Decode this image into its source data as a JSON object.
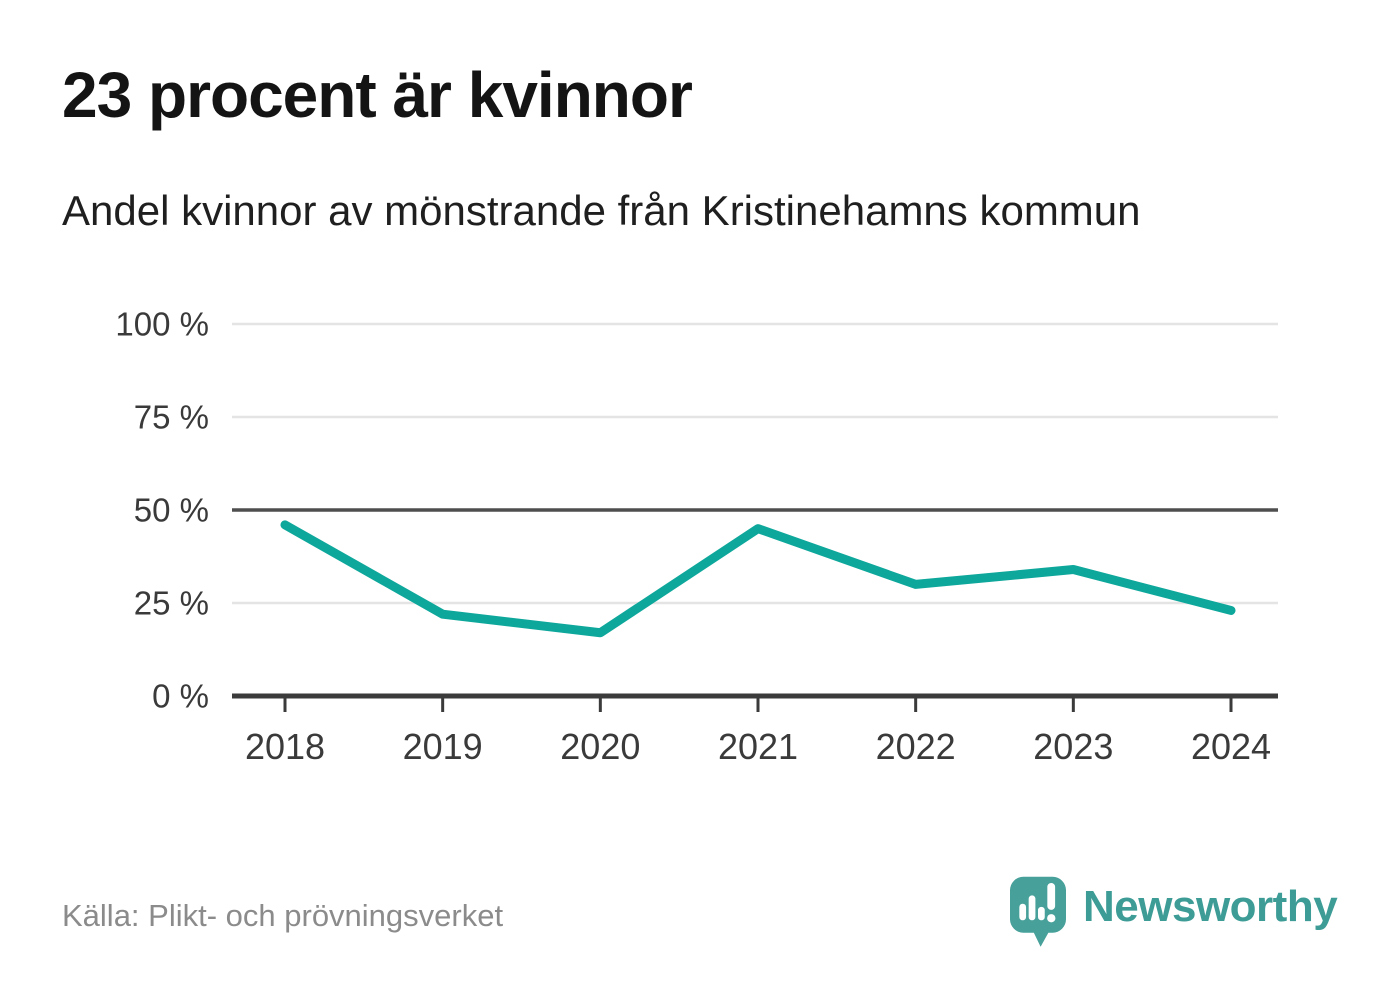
{
  "header": {
    "title": "23 procent är kvinnor",
    "subtitle": "Andel kvinnor av mönstrande från Kristinehamns kommun"
  },
  "footer": {
    "source": "Källa: Plikt- och prövningsverket",
    "brand": "Newsworthy"
  },
  "colors": {
    "line": "#0ea79b",
    "grid_light": "#e4e4e4",
    "grid_dark": "#4e4e4e",
    "axis": "#3b3b3b",
    "tick_text": "#3a3a3a",
    "title_text": "#141414",
    "muted_text": "#8b8b8b",
    "brand_bubble": "#47a09a",
    "brand_text": "#3d9c96"
  },
  "chart_data": {
    "type": "line",
    "x": [
      2018,
      2019,
      2020,
      2021,
      2022,
      2023,
      2024
    ],
    "series": [
      {
        "name": "Andel kvinnor av mönstrande",
        "values": [
          46,
          22,
          17,
          45,
          30,
          34,
          23
        ]
      }
    ],
    "title": "23 procent är kvinnor",
    "subtitle": "Andel kvinnor av mönstrande från Kristinehamns kommun",
    "xlabel": "",
    "ylabel": "",
    "ylim": [
      0,
      100
    ],
    "yticks": [
      {
        "value": 0,
        "label": "0 %"
      },
      {
        "value": 25,
        "label": "25 %"
      },
      {
        "value": 50,
        "label": "50 %"
      },
      {
        "value": 75,
        "label": "75 %"
      },
      {
        "value": 100,
        "label": "100 %"
      }
    ],
    "emphasized_gridline": 50,
    "grid": "horizontal",
    "legend": "none"
  }
}
